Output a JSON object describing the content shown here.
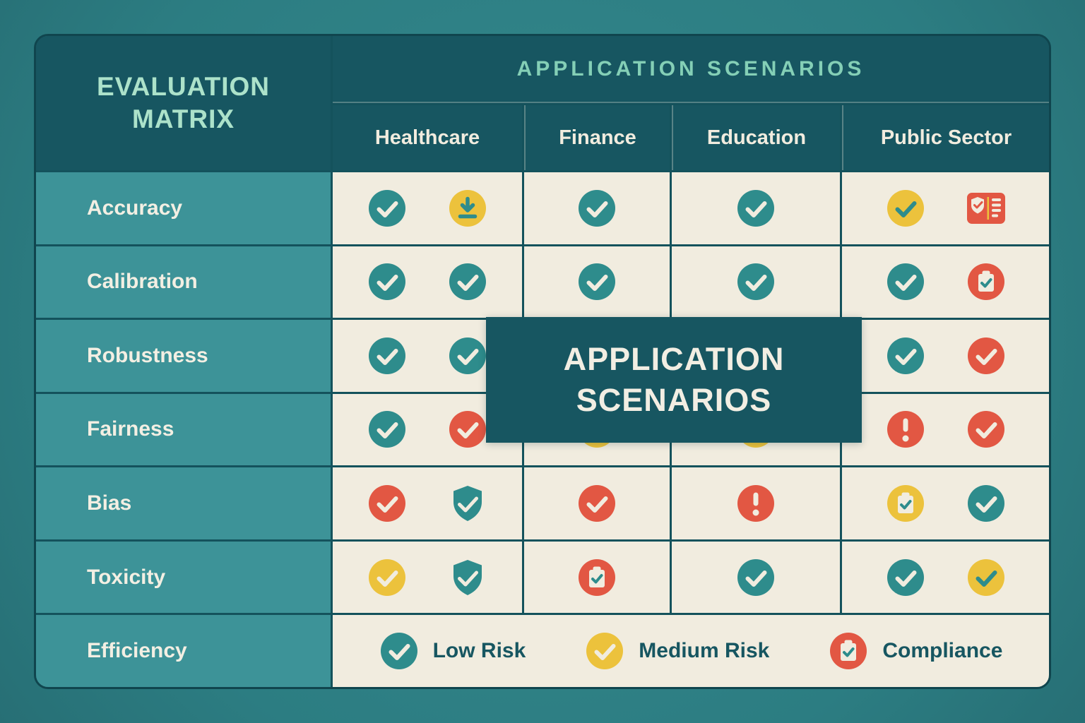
{
  "palette": {
    "page_bg": "#2e7f84",
    "grid_line": "#14525c",
    "header_bg": "#175661",
    "scenarios_text": "#84cfb6",
    "matrix_title_text": "#ace2ca",
    "row_label_bg": "#3d9398",
    "cell_bg": "#f1ecdf",
    "cream": "#f1ecdf",
    "teal": "#2e8c8c",
    "yellow": "#ecc23c",
    "red": "#e25743",
    "column_text": "#f1ecdf",
    "row_label_text": "#f3efe3",
    "legend_text": "#175661",
    "overlay_bg": "#175661",
    "overlay_text": "#f2eee3"
  },
  "header": {
    "title": "EVALUATION\nMATRIX",
    "scenarios_title": "APPLICATION SCENARIOS",
    "columns": [
      "Healthcare",
      "Finance",
      "Education",
      "Public Sector"
    ]
  },
  "overlay": {
    "text": "APPLICATION\nSCENARIOS"
  },
  "rows": [
    {
      "label": "Accuracy",
      "cells": [
        [
          "check-teal",
          "download-yellow"
        ],
        [
          "check-teal"
        ],
        [
          "check-teal"
        ],
        [
          "check-badge-yellow",
          "certificate-red"
        ]
      ]
    },
    {
      "label": "Calibration",
      "cells": [
        [
          "check-teal",
          "check-teal"
        ],
        [
          "check-teal"
        ],
        [
          "check-teal"
        ],
        [
          "check-teal",
          "clipboard-red"
        ]
      ]
    },
    {
      "label": "Robustness",
      "cells": [
        [
          "check-teal",
          "check-teal"
        ],
        [],
        [],
        [
          "check-teal",
          "check-red"
        ]
      ]
    },
    {
      "label": "Fairness",
      "cells": [
        [
          "check-teal",
          "check-red"
        ],
        [
          "check-yellow"
        ],
        [
          "check-yellow"
        ],
        [
          "alert-red",
          "check-red"
        ]
      ]
    },
    {
      "label": "Bias",
      "cells": [
        [
          "check-red",
          "shield-check-teal"
        ],
        [
          "check-red"
        ],
        [
          "alert-red"
        ],
        [
          "clipboard-yellow",
          "check-teal"
        ]
      ]
    },
    {
      "label": "Toxicity",
      "cells": [
        [
          "check-yellow",
          "shield-check-teal"
        ],
        [
          "clipboard-red"
        ],
        [
          "check-teal"
        ],
        [
          "check-teal",
          "check-badge-yellow"
        ]
      ]
    },
    {
      "label": "Efficiency",
      "legend_row": true
    }
  ],
  "legend": {
    "items": [
      {
        "icon": "check-teal",
        "label": "Low Risk"
      },
      {
        "icon": "check-yellow",
        "label": "Medium Risk"
      },
      {
        "icon": "clipboard-red",
        "label": "Compliance"
      }
    ]
  }
}
